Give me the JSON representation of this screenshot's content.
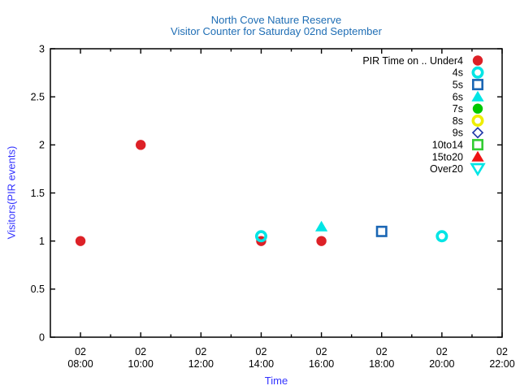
{
  "colors": {
    "background": "#ffffff",
    "title": "#1f6eb5",
    "axis_label": "#3333ff",
    "tick_label": "#000000",
    "axis": "#000000"
  },
  "chart_data": {
    "type": "scatter",
    "title": "North Cove Nature Reserve",
    "subtitle": "Visitor Counter for Saturday 02nd September",
    "xlabel": "Time",
    "ylabel": "Visitors(PIR events)",
    "grid": false,
    "legend": {
      "position": "top-right-inside",
      "title_prefix": "PIR Time on .."
    },
    "x_axis": {
      "unit": "hour-of-day",
      "range": [
        7,
        22
      ],
      "minor_tick_step": 1,
      "major_ticks": [
        8,
        10,
        12,
        14,
        16,
        18,
        20,
        22
      ],
      "tick_label_line1": "02",
      "tick_label_line2": [
        "08:00",
        "10:00",
        "12:00",
        "14:00",
        "16:00",
        "18:00",
        "20:00",
        "22:00"
      ]
    },
    "y_axis": {
      "range": [
        0,
        3
      ],
      "tick_values": [
        0,
        0.5,
        1,
        1.5,
        2,
        2.5,
        3
      ],
      "ticks": [
        "0",
        "0.5",
        "1",
        "1.5",
        "2",
        "2.5",
        "3"
      ]
    },
    "series": [
      {
        "name": "PIR Time on .. Under4",
        "marker": "circle-filled",
        "color": "#dd2127",
        "points": [
          {
            "hour": 8,
            "y": 1
          },
          {
            "hour": 10,
            "y": 2
          },
          {
            "hour": 14,
            "y": 1
          },
          {
            "hour": 16,
            "y": 1
          }
        ]
      },
      {
        "name": "4s",
        "marker": "circle-open",
        "color": "#00e5e5",
        "points": [
          {
            "hour": 14,
            "y": 1.05
          },
          {
            "hour": 20,
            "y": 1.05
          }
        ]
      },
      {
        "name": "5s",
        "marker": "square-open",
        "color": "#1a66b4",
        "points": [
          {
            "hour": 18,
            "y": 1.1
          }
        ]
      },
      {
        "name": "6s",
        "marker": "triangle-up-filled",
        "color": "#00e5e5",
        "points": [
          {
            "hour": 16,
            "y": 1.15
          }
        ]
      },
      {
        "name": "7s",
        "marker": "circle-filled",
        "color": "#00c800",
        "points": []
      },
      {
        "name": "8s",
        "marker": "circle-open",
        "color": "#eeee00",
        "points": []
      },
      {
        "name": "9s",
        "marker": "diamond-open",
        "color": "#2039a8",
        "points": []
      },
      {
        "name": "10to14",
        "marker": "square-open",
        "color": "#33cc33",
        "points": []
      },
      {
        "name": "15to20",
        "marker": "triangle-up-filled",
        "color": "#ee1414",
        "points": []
      },
      {
        "name": "Over20",
        "marker": "triangle-down-open",
        "color": "#00e5e5",
        "points": []
      }
    ]
  }
}
